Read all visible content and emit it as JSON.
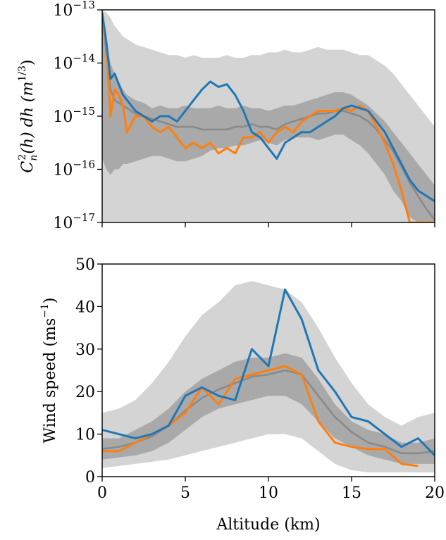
{
  "chart_data": [
    {
      "type": "area",
      "xlabel": "",
      "ylabel": "C_n^2(h) dh (m^{1/3})",
      "ylabel_parts": {
        "base": "C",
        "sub": "n",
        "sup": "2",
        "mid": "(h) dh (m",
        "unit_sup": "1/3",
        "end": ")"
      },
      "xlim": [
        0,
        20
      ],
      "ylim": [
        1e-17,
        1e-13
      ],
      "yscale": "log",
      "x_ticks": [
        0,
        5,
        10,
        15,
        20
      ],
      "y_ticks": [
        -17,
        -16,
        -15,
        -14,
        -13
      ],
      "y_tick_labels": [
        "10^-17",
        "10^-16",
        "10^-15",
        "10^-14",
        "10^-13"
      ],
      "grid": false,
      "colors": {
        "outer_band": "#d4d4d4",
        "inner_band": "#a9a9a9",
        "median": "#8a8a8a",
        "orange": "#ff7f0e",
        "blue": "#1f77b4"
      },
      "x": [
        0,
        0.25,
        0.5,
        0.75,
        1,
        1.25,
        1.5,
        2,
        2.5,
        3,
        3.5,
        4,
        4.5,
        5,
        5.5,
        6,
        6.5,
        7,
        7.5,
        8,
        8.5,
        9,
        9.5,
        10,
        10.5,
        11,
        11.5,
        12,
        12.5,
        13,
        13.5,
        14,
        14.5,
        15,
        15.5,
        16,
        16.5,
        17,
        17.5,
        18,
        18.5,
        19,
        19.5,
        20
      ],
      "outer_upper": [
        -13.0,
        -13.05,
        -13.15,
        -13.3,
        -13.4,
        -13.5,
        -13.55,
        -13.65,
        -13.7,
        -13.75,
        -13.8,
        -13.85,
        -13.85,
        -13.9,
        -13.85,
        -13.9,
        -13.9,
        -13.9,
        -13.85,
        -13.9,
        -13.9,
        -13.85,
        -13.85,
        -13.8,
        -13.8,
        -13.75,
        -13.8,
        -13.8,
        -13.75,
        -13.7,
        -13.75,
        -13.75,
        -13.75,
        -13.8,
        -13.85,
        -13.85,
        -13.95,
        -14.05,
        -14.2,
        -14.4,
        -14.6,
        -14.8,
        -15.0,
        -15.2
      ],
      "outer_lower": [
        -17.0,
        -17.0,
        -17.0,
        -17.0,
        -17.0,
        -17.0,
        -17.0,
        -17.0,
        -17.0,
        -17.0,
        -17.0,
        -17.0,
        -17.0,
        -17.0,
        -17.0,
        -17.0,
        -17.0,
        -17.0,
        -17.0,
        -17.0,
        -17.0,
        -17.0,
        -17.0,
        -17.0,
        -17.0,
        -17.0,
        -17.0,
        -17.0,
        -17.0,
        -17.0,
        -17.0,
        -17.0,
        -17.0,
        -17.0,
        -17.0,
        -17.0,
        -17.0,
        -17.0,
        -17.0,
        -17.0,
        -17.0,
        -17.0,
        -17.0,
        -17.0
      ],
      "inner_upper": [
        -13.3,
        -13.6,
        -14.0,
        -14.2,
        -14.35,
        -14.5,
        -14.6,
        -14.7,
        -14.75,
        -14.85,
        -14.8,
        -14.85,
        -14.85,
        -14.8,
        -14.85,
        -14.85,
        -14.85,
        -14.8,
        -14.85,
        -14.85,
        -14.8,
        -14.85,
        -14.85,
        -14.9,
        -14.85,
        -14.8,
        -14.8,
        -14.75,
        -14.7,
        -14.65,
        -14.6,
        -14.55,
        -14.55,
        -14.6,
        -14.7,
        -14.8,
        -14.95,
        -15.1,
        -15.3,
        -15.5,
        -15.7,
        -15.9,
        -16.1,
        -16.3
      ],
      "inner_lower": [
        -15.8,
        -16.0,
        -16.1,
        -16.0,
        -16.0,
        -15.9,
        -15.9,
        -15.85,
        -15.8,
        -15.75,
        -15.75,
        -15.8,
        -15.85,
        -15.85,
        -15.8,
        -15.75,
        -15.65,
        -15.6,
        -15.6,
        -15.55,
        -15.55,
        -15.5,
        -15.45,
        -15.5,
        -15.55,
        -15.45,
        -15.4,
        -15.4,
        -15.4,
        -15.45,
        -15.4,
        -15.35,
        -15.35,
        -15.45,
        -15.55,
        -15.7,
        -15.9,
        -16.1,
        -16.4,
        -16.6,
        -16.9,
        -17.0,
        -17.0,
        -17.0
      ],
      "series": [
        {
          "color": "#8a8a8a",
          "values": [
            -13.1,
            -13.8,
            -14.5,
            -14.7,
            -14.75,
            -14.8,
            -14.85,
            -14.95,
            -15.0,
            -15.05,
            -15.1,
            -15.15,
            -15.2,
            -15.2,
            -15.2,
            -15.25,
            -15.25,
            -15.25,
            -15.25,
            -15.2,
            -15.2,
            -15.15,
            -15.2,
            -15.2,
            -15.25,
            -15.15,
            -15.1,
            -15.05,
            -15.0,
            -14.95,
            -14.95,
            -14.9,
            -14.9,
            -14.95,
            -15.0,
            -15.1,
            -15.25,
            -15.45,
            -15.65,
            -15.95,
            -16.25,
            -16.5,
            -16.75,
            -16.95
          ]
        },
        {
          "color": "#ff7f0e",
          "values": [
            -13.3,
            -13.6,
            -15.0,
            -14.5,
            -14.6,
            -14.8,
            -15.3,
            -15.0,
            -15.0,
            -15.2,
            -15.3,
            -15.2,
            -15.4,
            -15.6,
            -15.5,
            -15.6,
            -15.5,
            -15.7,
            -15.6,
            -15.7,
            -15.4,
            -15.4,
            -15.3,
            -15.5,
            -15.3,
            -15.2,
            -15.3,
            -15.1,
            -15.0,
            -14.9,
            -14.9,
            -14.9,
            -14.85,
            -14.9,
            -14.8,
            -14.9,
            -15.2,
            -15.5,
            -15.9,
            -16.4,
            -17.0,
            -17.0,
            -17.0,
            -17.0
          ]
        },
        {
          "color": "#1f77b4",
          "values": [
            -13.05,
            -13.6,
            -14.3,
            -14.2,
            -14.4,
            -14.6,
            -14.7,
            -14.9,
            -15.0,
            -15.1,
            -15.0,
            -15.0,
            -15.1,
            -14.9,
            -14.7,
            -14.5,
            -14.35,
            -14.45,
            -14.4,
            -14.6,
            -14.9,
            -15.3,
            -15.4,
            -15.6,
            -15.8,
            -15.5,
            -15.4,
            -15.3,
            -15.3,
            -15.2,
            -15.1,
            -15.0,
            -14.85,
            -14.8,
            -14.85,
            -14.9,
            -15.1,
            -15.3,
            -15.6,
            -15.9,
            -16.2,
            -16.4,
            -16.5,
            -16.6
          ]
        }
      ]
    },
    {
      "type": "area",
      "xlabel": "Altitude (km)",
      "ylabel": "Wind speed (ms^-1)",
      "ylabel_parts": {
        "main": "Wind speed (ms",
        "unit_sup": "−1",
        "end": ")"
      },
      "xlim": [
        0,
        20
      ],
      "ylim": [
        0,
        50
      ],
      "x_ticks": [
        0,
        5,
        10,
        15,
        20
      ],
      "x_tick_labels": [
        "0",
        "5",
        "10",
        "15",
        "20"
      ],
      "y_ticks": [
        0,
        10,
        20,
        30,
        40,
        50
      ],
      "y_tick_labels": [
        "0",
        "10",
        "20",
        "30",
        "40",
        "50"
      ],
      "grid": false,
      "x": [
        0,
        1,
        2,
        3,
        4,
        5,
        6,
        7,
        8,
        9,
        10,
        11,
        12,
        13,
        14,
        15,
        16,
        17,
        18,
        19,
        20
      ],
      "outer_upper": [
        15,
        16,
        18,
        22,
        27,
        33,
        38,
        41,
        45,
        46,
        45,
        44,
        41,
        35,
        28,
        22,
        17,
        14,
        12,
        14,
        15
      ],
      "outer_lower": [
        2,
        2.5,
        3,
        3.5,
        4,
        5,
        6,
        7,
        8,
        9,
        10,
        10,
        9,
        6,
        3,
        1.5,
        1,
        1,
        1,
        1,
        1
      ],
      "inner_upper": [
        9,
        9,
        11,
        13,
        16,
        20,
        23,
        25,
        27,
        28,
        28,
        29,
        28,
        23,
        17,
        13,
        11,
        10,
        8,
        8,
        9
      ],
      "inner_lower": [
        4,
        4.5,
        5,
        6,
        8,
        11,
        14,
        16,
        17,
        18,
        19,
        19,
        17,
        13,
        9,
        7,
        5,
        4,
        3,
        3,
        3
      ],
      "series": [
        {
          "color": "#8a8a8a",
          "values": [
            6.5,
            7,
            8,
            9.5,
            12,
            15.5,
            18.5,
            20.5,
            22,
            23.5,
            24,
            25,
            24,
            19,
            14,
            10.5,
            8,
            7,
            5.5,
            5.5,
            6
          ]
        },
        {
          "color": "#ff7f0e",
          "values": [
            6,
            6,
            8,
            10,
            12,
            15,
            21,
            17,
            23,
            24,
            25,
            26,
            24,
            13,
            8,
            7,
            6.5,
            6.5,
            3,
            2.5,
            null
          ]
        },
        {
          "color": "#1f77b4",
          "values": [
            11,
            10,
            9,
            10,
            12,
            19,
            21,
            19,
            18,
            30,
            26,
            44,
            37,
            25,
            20,
            14,
            13,
            10,
            7,
            9,
            5
          ]
        }
      ]
    }
  ]
}
